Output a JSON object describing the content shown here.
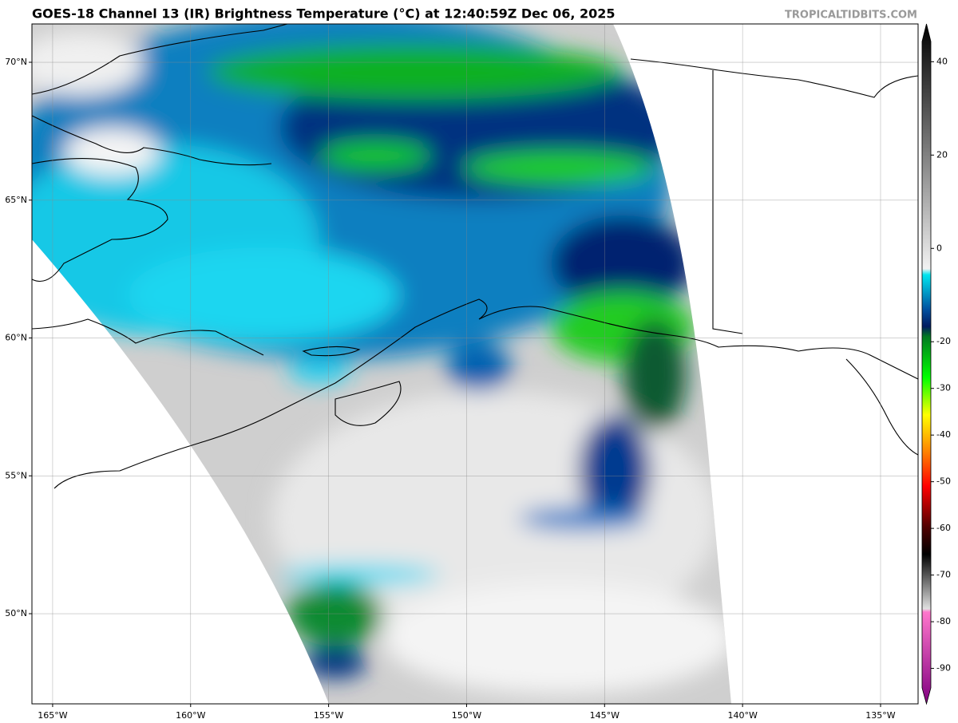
{
  "header": {
    "title": "GOES-18 Channel 13 (IR) Brightness Temperature (°C) at 12:40:59Z Dec 06, 2025",
    "credit": "TROPICALTIDBITS.COM"
  },
  "map": {
    "xlim": [
      -165.75,
      -133.64
    ],
    "ylim": [
      46.73,
      71.39
    ],
    "xticks": [
      {
        "value": -165,
        "label": "165°W"
      },
      {
        "value": -160,
        "label": "160°W"
      },
      {
        "value": -155,
        "label": "155°W"
      },
      {
        "value": -150,
        "label": "150°W"
      },
      {
        "value": -145,
        "label": "145°W"
      },
      {
        "value": -140,
        "label": "140°W"
      },
      {
        "value": -135,
        "label": "135°W"
      }
    ],
    "yticks": [
      {
        "value": 50,
        "label": "50°N"
      },
      {
        "value": 55,
        "label": "55°N"
      },
      {
        "value": 60,
        "label": "60°N"
      },
      {
        "value": 65,
        "label": "65°N"
      },
      {
        "value": 70,
        "label": "70°N"
      }
    ],
    "grid": true
  },
  "colorbar": {
    "lim": [
      -97.6,
      48.1
    ],
    "ticks": [
      40,
      20,
      0,
      -20,
      -30,
      -40,
      -50,
      -60,
      -70,
      -80,
      -90
    ]
  }
}
